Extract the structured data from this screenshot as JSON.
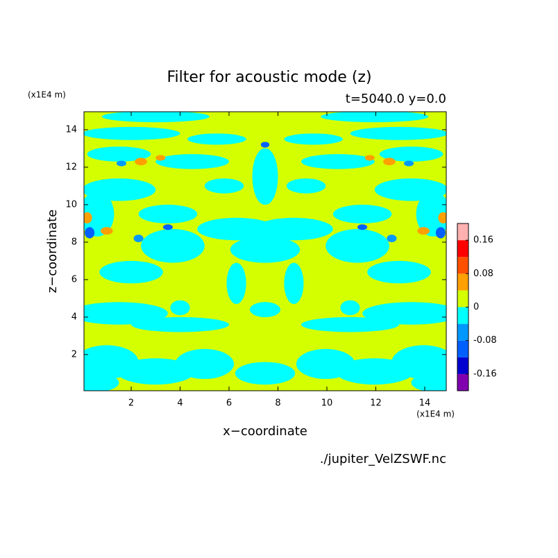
{
  "chart_data": {
    "type": "contour",
    "title": "Filter for acoustic mode (z)",
    "subtitle": "t=5040.0 y=0.0",
    "x_label": "x−coordinate",
    "y_label": "z−coordinate",
    "x_unit": "(x1E4 m)",
    "y_unit": "(x1E4 m)",
    "source": "./jupiter_VelZSWF.nc",
    "xlim": [
      0.07,
      14.88
    ],
    "ylim": [
      0.07,
      14.96
    ],
    "xticks": [
      2,
      4,
      6,
      8,
      10,
      12,
      14
    ],
    "yticks": [
      2,
      4,
      6,
      8,
      10,
      12,
      14
    ],
    "colorbar": {
      "lim": [
        -0.2,
        0.2
      ],
      "ticks": [
        0.16,
        0.08,
        0,
        -0.08,
        -0.16
      ],
      "colors": [
        "#8000b0",
        "#0000d0",
        "#0060ff",
        "#0098ff",
        "#00ffff",
        "#d4ff00",
        "#ffa000",
        "#ff5000",
        "#ff0000",
        "#ffb0b0"
      ]
    }
  }
}
